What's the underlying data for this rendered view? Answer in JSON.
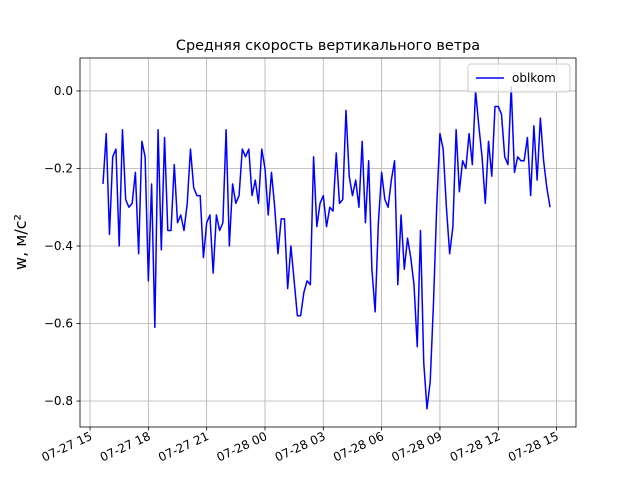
{
  "chart_data": {
    "type": "line",
    "title": "Средняя скорость вертикального ветра",
    "ylabel": "w, м/с²",
    "x": [
      "07-27 15:40",
      "07-27 15:50",
      "07-27 16:00",
      "07-27 16:10",
      "07-27 16:20",
      "07-27 16:30",
      "07-27 16:40",
      "07-27 16:50",
      "07-27 17:00",
      "07-27 17:10",
      "07-27 17:20",
      "07-27 17:30",
      "07-27 17:40",
      "07-27 17:50",
      "07-27 18:00",
      "07-27 18:10",
      "07-27 18:20",
      "07-27 18:30",
      "07-27 18:40",
      "07-27 18:50",
      "07-27 19:00",
      "07-27 19:10",
      "07-27 19:20",
      "07-27 19:30",
      "07-27 19:40",
      "07-27 19:50",
      "07-27 20:00",
      "07-27 20:10",
      "07-27 20:20",
      "07-27 20:30",
      "07-27 20:40",
      "07-27 20:50",
      "07-27 21:00",
      "07-27 21:10",
      "07-27 21:20",
      "07-27 21:30",
      "07-27 21:40",
      "07-27 21:50",
      "07-27 22:00",
      "07-27 22:10",
      "07-27 22:20",
      "07-27 22:30",
      "07-27 22:40",
      "07-27 22:50",
      "07-27 23:00",
      "07-27 23:10",
      "07-27 23:20",
      "07-27 23:30",
      "07-27 23:40",
      "07-27 23:50",
      "07-28 00:00",
      "07-28 00:10",
      "07-28 00:20",
      "07-28 00:30",
      "07-28 00:40",
      "07-28 00:50",
      "07-28 01:00",
      "07-28 01:10",
      "07-28 01:20",
      "07-28 01:30",
      "07-28 01:40",
      "07-28 01:50",
      "07-28 02:00",
      "07-28 02:10",
      "07-28 02:20",
      "07-28 02:30",
      "07-28 02:40",
      "07-28 02:50",
      "07-28 03:00",
      "07-28 03:10",
      "07-28 03:20",
      "07-28 03:30",
      "07-28 03:40",
      "07-28 03:50",
      "07-28 04:00",
      "07-28 04:10",
      "07-28 04:20",
      "07-28 04:30",
      "07-28 04:40",
      "07-28 04:50",
      "07-28 05:00",
      "07-28 05:10",
      "07-28 05:20",
      "07-28 05:30",
      "07-28 05:40",
      "07-28 05:50",
      "07-28 06:00",
      "07-28 06:10",
      "07-28 06:20",
      "07-28 06:30",
      "07-28 06:40",
      "07-28 06:50",
      "07-28 07:00",
      "07-28 07:10",
      "07-28 07:20",
      "07-28 07:30",
      "07-28 07:40",
      "07-28 07:50",
      "07-28 08:00",
      "07-28 08:10",
      "07-28 08:20",
      "07-28 08:30",
      "07-28 08:40",
      "07-28 08:50",
      "07-28 09:00",
      "07-28 09:10",
      "07-28 09:20",
      "07-28 09:30",
      "07-28 09:40",
      "07-28 09:50",
      "07-28 10:00",
      "07-28 10:10",
      "07-28 10:20",
      "07-28 10:30",
      "07-28 10:40",
      "07-28 10:50",
      "07-28 11:00",
      "07-28 11:10",
      "07-28 11:20",
      "07-28 11:30",
      "07-28 11:40",
      "07-28 11:50",
      "07-28 12:00",
      "07-28 12:10",
      "07-28 12:20",
      "07-28 12:30",
      "07-28 12:40",
      "07-28 12:50",
      "07-28 13:00",
      "07-28 13:10",
      "07-28 13:20",
      "07-28 13:30",
      "07-28 13:40",
      "07-28 13:50",
      "07-28 14:00",
      "07-28 14:10",
      "07-28 14:20",
      "07-28 14:30",
      "07-28 14:40"
    ],
    "series": [
      {
        "name": "oblkom",
        "color": "#0000ff",
        "values": [
          -0.24,
          -0.11,
          -0.37,
          -0.17,
          -0.15,
          -0.4,
          -0.1,
          -0.28,
          -0.3,
          -0.29,
          -0.21,
          -0.42,
          -0.13,
          -0.17,
          -0.49,
          -0.24,
          -0.61,
          -0.1,
          -0.41,
          -0.12,
          -0.36,
          -0.36,
          -0.19,
          -0.34,
          -0.32,
          -0.36,
          -0.29,
          -0.15,
          -0.25,
          -0.27,
          -0.27,
          -0.43,
          -0.34,
          -0.32,
          -0.47,
          -0.32,
          -0.36,
          -0.34,
          -0.1,
          -0.4,
          -0.24,
          -0.29,
          -0.27,
          -0.15,
          -0.17,
          -0.15,
          -0.27,
          -0.23,
          -0.29,
          -0.15,
          -0.2,
          -0.32,
          -0.21,
          -0.3,
          -0.42,
          -0.33,
          -0.33,
          -0.51,
          -0.4,
          -0.49,
          -0.58,
          -0.58,
          -0.52,
          -0.49,
          -0.5,
          -0.17,
          -0.35,
          -0.29,
          -0.27,
          -0.35,
          -0.3,
          -0.31,
          -0.16,
          -0.29,
          -0.28,
          -0.05,
          -0.22,
          -0.27,
          -0.23,
          -0.3,
          -0.13,
          -0.34,
          -0.18,
          -0.46,
          -0.57,
          -0.34,
          -0.21,
          -0.28,
          -0.3,
          -0.23,
          -0.18,
          -0.5,
          -0.32,
          -0.46,
          -0.38,
          -0.43,
          -0.5,
          -0.66,
          -0.36,
          -0.7,
          -0.82,
          -0.75,
          -0.55,
          -0.3,
          -0.11,
          -0.15,
          -0.3,
          -0.42,
          -0.35,
          -0.1,
          -0.26,
          -0.18,
          -0.2,
          -0.11,
          -0.19,
          0.0,
          -0.09,
          -0.17,
          -0.29,
          -0.13,
          -0.22,
          -0.04,
          -0.04,
          -0.06,
          -0.17,
          -0.19,
          0.01,
          -0.21,
          -0.17,
          -0.18,
          -0.18,
          -0.12,
          -0.27,
          -0.09,
          -0.23,
          -0.07,
          -0.18,
          -0.25,
          -0.3
        ]
      }
    ],
    "xlim": [
      "07-27 14:29",
      "07-28 16:00"
    ],
    "xticks": [
      {
        "value": "07-27 15:00",
        "label": "07-27 15"
      },
      {
        "value": "07-27 18:00",
        "label": "07-27 18"
      },
      {
        "value": "07-27 21:00",
        "label": "07-27 21"
      },
      {
        "value": "07-28 00:00",
        "label": "07-28 00"
      },
      {
        "value": "07-28 03:00",
        "label": "07-28 03"
      },
      {
        "value": "07-28 06:00",
        "label": "07-28 06"
      },
      {
        "value": "07-28 09:00",
        "label": "07-28 09"
      },
      {
        "value": "07-28 12:00",
        "label": "07-28 12"
      },
      {
        "value": "07-28 15:00",
        "label": "07-28 15"
      }
    ],
    "ylim": [
      -0.867,
      0.085
    ],
    "yticks": [
      {
        "value": -0.8,
        "label": "−0.8"
      },
      {
        "value": -0.6,
        "label": "−0.6"
      },
      {
        "value": -0.4,
        "label": "−0.4"
      },
      {
        "value": -0.2,
        "label": "−0.2"
      },
      {
        "value": 0,
        "label": "0.0"
      }
    ],
    "grid": true,
    "legend": "upper right"
  }
}
